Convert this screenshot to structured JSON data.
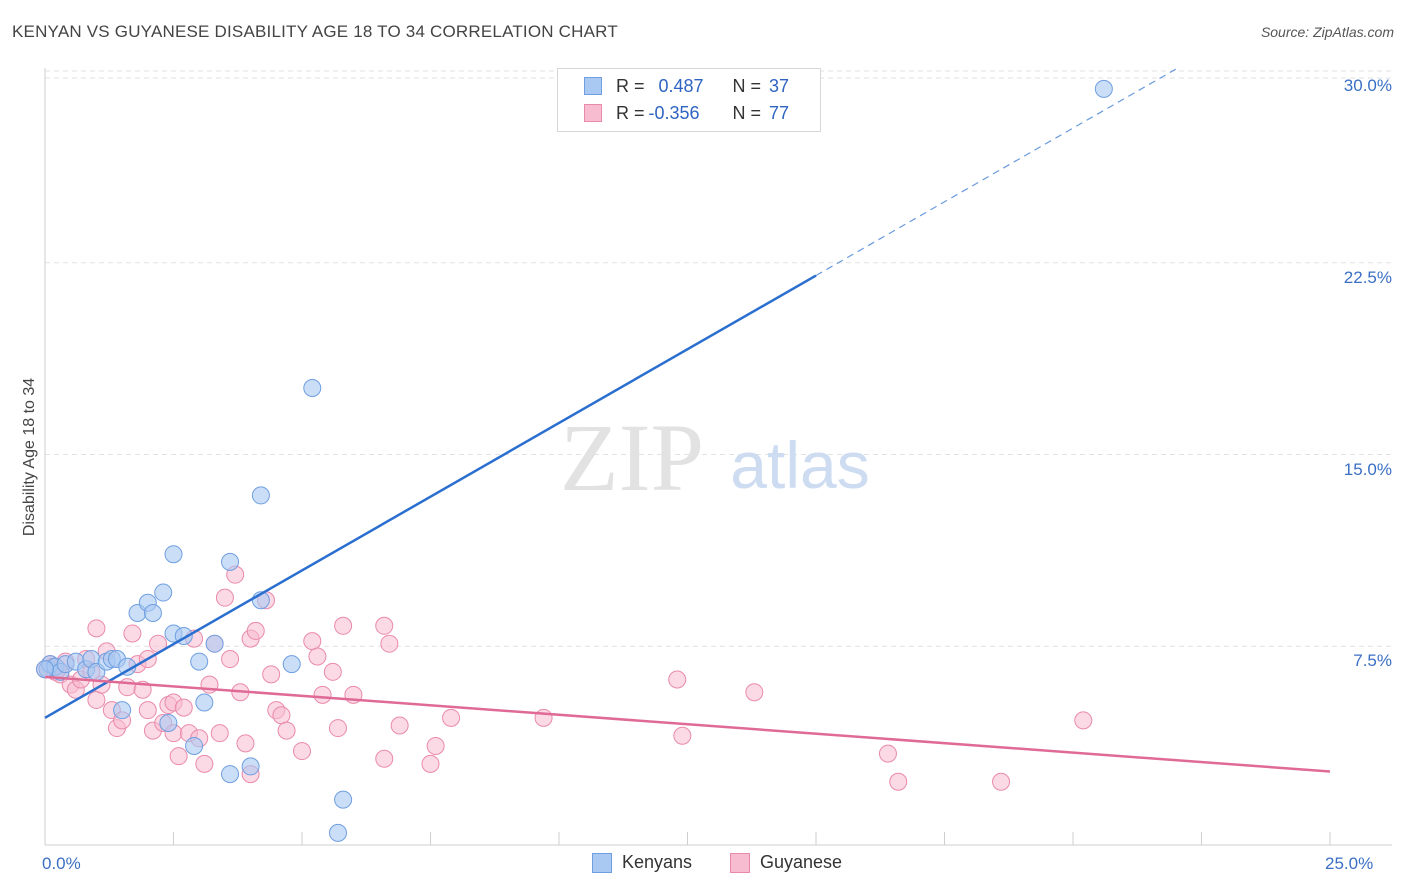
{
  "title": "KENYAN VS GUYANESE DISABILITY AGE 18 TO 34 CORRELATION CHART",
  "source": "Source: ZipAtlas.com",
  "watermark": {
    "zip": "ZIP",
    "atlas": "atlas"
  },
  "colors": {
    "kenyans_fill": "#a9c8f2",
    "kenyans_stroke": "#6f9fe0",
    "kenyans_line": "#2a6fcf",
    "guyanese_fill": "#f7bcd0",
    "guyanese_stroke": "#ea8aab",
    "guyanese_line": "#e06a96",
    "tick_text": "#3b6fc4"
  },
  "legend": {
    "rows": [
      {
        "r_label": "R =",
        "r_value": "0.487",
        "n_label": "N =",
        "n_value": "37"
      },
      {
        "r_label": "R =",
        "r_value": "-0.356",
        "n_label": "N =",
        "n_value": "77"
      }
    ]
  },
  "bottom_legend": {
    "kenyans": "Kenyans",
    "guyanese": "Guyanese"
  },
  "chart_data": {
    "type": "scatter",
    "title": "KENYAN VS GUYANESE DISABILITY AGE 18 TO 34 CORRELATION CHART",
    "xlabel": "",
    "ylabel": "Disability Age 18 to 34",
    "xlim": [
      0,
      25
    ],
    "ylim": [
      0,
      30
    ],
    "x_tick_labels": [
      "0.0%",
      "25.0%"
    ],
    "y_tick_labels": [
      "7.5%",
      "15.0%",
      "22.5%",
      "30.0%"
    ],
    "y_ticks": [
      7.5,
      15.0,
      22.5,
      30.0
    ],
    "grid": true,
    "series": [
      {
        "name": "Kenyans",
        "r": 0.487,
        "n": 37,
        "trend": {
          "x0": 0,
          "y0": 4.7,
          "x1": 15.0,
          "y1": 22.0,
          "dashed_to_x": 22.0
        },
        "points": [
          [
            0.05,
            6.6
          ],
          [
            0.1,
            6.8
          ],
          [
            0.2,
            6.7
          ],
          [
            0.3,
            6.5
          ],
          [
            0.4,
            6.8
          ],
          [
            0.6,
            6.9
          ],
          [
            0.8,
            6.6
          ],
          [
            0.9,
            7.0
          ],
          [
            1.0,
            6.5
          ],
          [
            1.2,
            6.9
          ],
          [
            1.3,
            7.0
          ],
          [
            1.4,
            7.0
          ],
          [
            1.5,
            5.0
          ],
          [
            1.6,
            6.7
          ],
          [
            1.8,
            8.8
          ],
          [
            2.0,
            9.2
          ],
          [
            2.1,
            8.8
          ],
          [
            2.3,
            9.6
          ],
          [
            2.4,
            4.5
          ],
          [
            2.5,
            11.1
          ],
          [
            2.5,
            8.0
          ],
          [
            2.7,
            7.9
          ],
          [
            2.9,
            3.6
          ],
          [
            3.0,
            6.9
          ],
          [
            3.1,
            5.3
          ],
          [
            3.3,
            7.6
          ],
          [
            3.6,
            2.5
          ],
          [
            3.6,
            10.8
          ],
          [
            4.0,
            2.8
          ],
          [
            4.2,
            9.3
          ],
          [
            4.2,
            13.4
          ],
          [
            4.8,
            6.8
          ],
          [
            5.2,
            17.6
          ],
          [
            5.7,
            0.2
          ],
          [
            5.8,
            1.5
          ],
          [
            20.6,
            29.3
          ],
          [
            0.0,
            6.6
          ]
        ]
      },
      {
        "name": "Guyanese",
        "r": -0.356,
        "n": 77,
        "trend": {
          "x0": 0,
          "y0": 6.3,
          "x1": 25,
          "y1": 2.6
        },
        "points": [
          [
            0.0,
            6.6
          ],
          [
            0.1,
            6.8
          ],
          [
            0.2,
            6.5
          ],
          [
            0.3,
            6.4
          ],
          [
            0.4,
            6.9
          ],
          [
            0.5,
            6.0
          ],
          [
            0.6,
            5.8
          ],
          [
            0.7,
            6.2
          ],
          [
            0.8,
            7.0
          ],
          [
            0.9,
            6.5
          ],
          [
            1.0,
            8.2
          ],
          [
            1.0,
            5.4
          ],
          [
            1.1,
            6.0
          ],
          [
            1.2,
            7.3
          ],
          [
            1.3,
            5.0
          ],
          [
            1.4,
            4.3
          ],
          [
            1.5,
            4.6
          ],
          [
            1.6,
            5.9
          ],
          [
            1.7,
            8.0
          ],
          [
            1.8,
            6.8
          ],
          [
            1.9,
            5.8
          ],
          [
            2.0,
            7.0
          ],
          [
            2.0,
            5.0
          ],
          [
            2.1,
            4.2
          ],
          [
            2.2,
            7.6
          ],
          [
            2.3,
            4.5
          ],
          [
            2.4,
            5.2
          ],
          [
            2.5,
            4.1
          ],
          [
            2.5,
            5.3
          ],
          [
            2.6,
            3.2
          ],
          [
            2.7,
            5.1
          ],
          [
            2.8,
            4.1
          ],
          [
            2.9,
            7.8
          ],
          [
            3.0,
            3.9
          ],
          [
            3.1,
            2.9
          ],
          [
            3.2,
            6.0
          ],
          [
            3.3,
            7.6
          ],
          [
            3.4,
            4.1
          ],
          [
            3.5,
            9.4
          ],
          [
            3.6,
            7.0
          ],
          [
            3.7,
            10.3
          ],
          [
            3.8,
            5.7
          ],
          [
            3.9,
            3.7
          ],
          [
            4.0,
            7.8
          ],
          [
            4.0,
            2.5
          ],
          [
            4.1,
            8.1
          ],
          [
            4.3,
            9.3
          ],
          [
            4.4,
            6.4
          ],
          [
            4.5,
            5.0
          ],
          [
            4.6,
            4.8
          ],
          [
            4.7,
            4.2
          ],
          [
            5.0,
            3.4
          ],
          [
            5.2,
            7.7
          ],
          [
            5.3,
            7.1
          ],
          [
            5.4,
            5.6
          ],
          [
            5.6,
            6.5
          ],
          [
            5.7,
            4.3
          ],
          [
            5.8,
            8.3
          ],
          [
            6.0,
            5.6
          ],
          [
            6.6,
            8.3
          ],
          [
            6.7,
            7.6
          ],
          [
            6.6,
            3.1
          ],
          [
            6.9,
            4.4
          ],
          [
            7.6,
            3.6
          ],
          [
            7.5,
            2.9
          ],
          [
            7.9,
            4.7
          ],
          [
            9.7,
            4.7
          ],
          [
            12.3,
            6.2
          ],
          [
            12.4,
            4.0
          ],
          [
            13.8,
            5.7
          ],
          [
            16.4,
            3.3
          ],
          [
            16.6,
            2.2
          ],
          [
            18.6,
            2.2
          ],
          [
            20.2,
            4.6
          ],
          [
            0.05,
            6.6
          ],
          [
            0.15,
            6.7
          ],
          [
            0.25,
            6.6
          ]
        ]
      }
    ]
  }
}
